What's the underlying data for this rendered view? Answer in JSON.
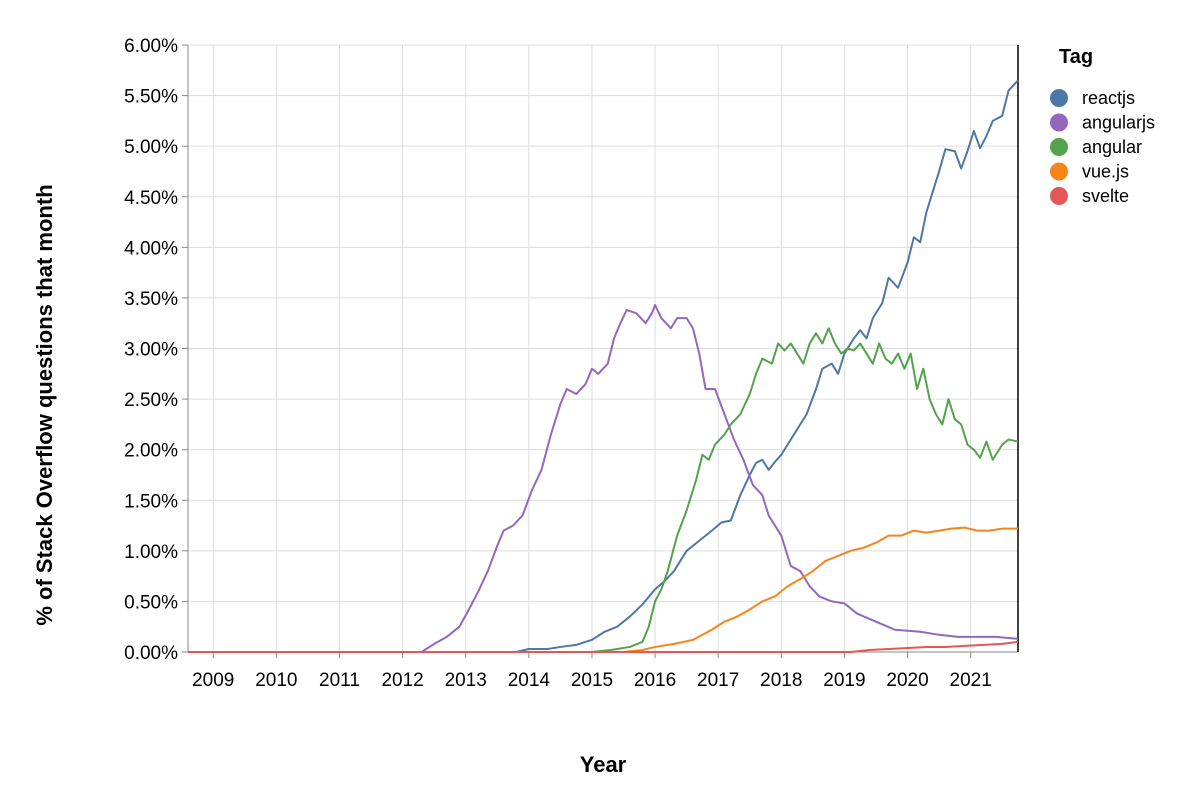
{
  "chart_data": {
    "type": "line",
    "xlabel": "Year",
    "ylabel": "% of Stack Overflow questions that month",
    "xlim": [
      2008.6,
      2021.75
    ],
    "ylim": [
      0,
      6
    ],
    "x_ticks": [
      "2009",
      "2010",
      "2011",
      "2012",
      "2013",
      "2014",
      "2015",
      "2016",
      "2017",
      "2018",
      "2019",
      "2020",
      "2021"
    ],
    "y_ticks": [
      "0.00%",
      "0.50%",
      "1.00%",
      "1.50%",
      "2.00%",
      "2.50%",
      "3.00%",
      "3.50%",
      "4.00%",
      "4.50%",
      "5.00%",
      "5.50%",
      "6.00%"
    ],
    "grid": true,
    "legend": {
      "title": "Tag",
      "position": "right"
    },
    "series": [
      {
        "name": "reactjs",
        "color": "#4c78a8",
        "points": [
          [
            2008.6,
            0.0
          ],
          [
            2013.8,
            0.0
          ],
          [
            2014.0,
            0.03
          ],
          [
            2014.3,
            0.03
          ],
          [
            2014.5,
            0.05
          ],
          [
            2014.75,
            0.07
          ],
          [
            2015.0,
            0.12
          ],
          [
            2015.2,
            0.2
          ],
          [
            2015.4,
            0.25
          ],
          [
            2015.6,
            0.35
          ],
          [
            2015.8,
            0.47
          ],
          [
            2016.0,
            0.62
          ],
          [
            2016.15,
            0.7
          ],
          [
            2016.3,
            0.8
          ],
          [
            2016.5,
            1.0
          ],
          [
            2016.7,
            1.1
          ],
          [
            2016.9,
            1.2
          ],
          [
            2017.05,
            1.28
          ],
          [
            2017.2,
            1.3
          ],
          [
            2017.35,
            1.55
          ],
          [
            2017.5,
            1.75
          ],
          [
            2017.6,
            1.87
          ],
          [
            2017.7,
            1.9
          ],
          [
            2017.8,
            1.8
          ],
          [
            2017.9,
            1.88
          ],
          [
            2018.0,
            1.95
          ],
          [
            2018.2,
            2.15
          ],
          [
            2018.4,
            2.35
          ],
          [
            2018.55,
            2.6
          ],
          [
            2018.65,
            2.8
          ],
          [
            2018.8,
            2.85
          ],
          [
            2018.9,
            2.75
          ],
          [
            2019.0,
            2.95
          ],
          [
            2019.15,
            3.1
          ],
          [
            2019.25,
            3.18
          ],
          [
            2019.35,
            3.1
          ],
          [
            2019.45,
            3.3
          ],
          [
            2019.6,
            3.45
          ],
          [
            2019.7,
            3.7
          ],
          [
            2019.85,
            3.6
          ],
          [
            2020.0,
            3.85
          ],
          [
            2020.1,
            4.1
          ],
          [
            2020.2,
            4.05
          ],
          [
            2020.3,
            4.35
          ],
          [
            2020.4,
            4.55
          ],
          [
            2020.5,
            4.75
          ],
          [
            2020.6,
            4.97
          ],
          [
            2020.75,
            4.95
          ],
          [
            2020.85,
            4.78
          ],
          [
            2020.95,
            4.95
          ],
          [
            2021.05,
            5.15
          ],
          [
            2021.15,
            4.98
          ],
          [
            2021.25,
            5.1
          ],
          [
            2021.35,
            5.25
          ],
          [
            2021.5,
            5.3
          ],
          [
            2021.6,
            5.55
          ],
          [
            2021.75,
            5.65
          ]
        ]
      },
      {
        "name": "angularjs",
        "color": "#9467bd",
        "points": [
          [
            2008.6,
            0.0
          ],
          [
            2012.3,
            0.0
          ],
          [
            2012.5,
            0.08
          ],
          [
            2012.7,
            0.15
          ],
          [
            2012.9,
            0.25
          ],
          [
            2013.05,
            0.42
          ],
          [
            2013.2,
            0.6
          ],
          [
            2013.35,
            0.8
          ],
          [
            2013.5,
            1.05
          ],
          [
            2013.6,
            1.2
          ],
          [
            2013.75,
            1.25
          ],
          [
            2013.9,
            1.35
          ],
          [
            2014.05,
            1.6
          ],
          [
            2014.2,
            1.8
          ],
          [
            2014.35,
            2.15
          ],
          [
            2014.5,
            2.45
          ],
          [
            2014.6,
            2.6
          ],
          [
            2014.75,
            2.55
          ],
          [
            2014.9,
            2.65
          ],
          [
            2015.0,
            2.8
          ],
          [
            2015.1,
            2.75
          ],
          [
            2015.25,
            2.85
          ],
          [
            2015.35,
            3.1
          ],
          [
            2015.45,
            3.25
          ],
          [
            2015.55,
            3.38
          ],
          [
            2015.7,
            3.35
          ],
          [
            2015.85,
            3.25
          ],
          [
            2015.95,
            3.35
          ],
          [
            2016.0,
            3.43
          ],
          [
            2016.1,
            3.3
          ],
          [
            2016.25,
            3.2
          ],
          [
            2016.35,
            3.3
          ],
          [
            2016.5,
            3.3
          ],
          [
            2016.6,
            3.2
          ],
          [
            2016.7,
            2.95
          ],
          [
            2016.8,
            2.6
          ],
          [
            2016.95,
            2.6
          ],
          [
            2017.1,
            2.35
          ],
          [
            2017.25,
            2.1
          ],
          [
            2017.4,
            1.9
          ],
          [
            2017.55,
            1.65
          ],
          [
            2017.7,
            1.55
          ],
          [
            2017.8,
            1.35
          ],
          [
            2018.0,
            1.15
          ],
          [
            2018.15,
            0.85
          ],
          [
            2018.3,
            0.8
          ],
          [
            2018.45,
            0.65
          ],
          [
            2018.6,
            0.55
          ],
          [
            2018.8,
            0.5
          ],
          [
            2019.0,
            0.48
          ],
          [
            2019.2,
            0.38
          ],
          [
            2019.5,
            0.3
          ],
          [
            2019.8,
            0.22
          ],
          [
            2020.2,
            0.2
          ],
          [
            2020.5,
            0.17
          ],
          [
            2020.8,
            0.15
          ],
          [
            2021.1,
            0.15
          ],
          [
            2021.4,
            0.15
          ],
          [
            2021.75,
            0.13
          ]
        ]
      },
      {
        "name": "angular",
        "color": "#54a24b",
        "points": [
          [
            2008.6,
            0.0
          ],
          [
            2015.0,
            0.0
          ],
          [
            2015.3,
            0.02
          ],
          [
            2015.6,
            0.05
          ],
          [
            2015.8,
            0.1
          ],
          [
            2015.9,
            0.25
          ],
          [
            2016.0,
            0.5
          ],
          [
            2016.1,
            0.62
          ],
          [
            2016.2,
            0.8
          ],
          [
            2016.35,
            1.15
          ],
          [
            2016.5,
            1.4
          ],
          [
            2016.65,
            1.7
          ],
          [
            2016.75,
            1.95
          ],
          [
            2016.85,
            1.9
          ],
          [
            2016.95,
            2.05
          ],
          [
            2017.1,
            2.15
          ],
          [
            2017.2,
            2.25
          ],
          [
            2017.35,
            2.35
          ],
          [
            2017.5,
            2.55
          ],
          [
            2017.6,
            2.75
          ],
          [
            2017.7,
            2.9
          ],
          [
            2017.85,
            2.85
          ],
          [
            2017.95,
            3.05
          ],
          [
            2018.05,
            2.98
          ],
          [
            2018.15,
            3.05
          ],
          [
            2018.25,
            2.95
          ],
          [
            2018.35,
            2.85
          ],
          [
            2018.45,
            3.05
          ],
          [
            2018.55,
            3.15
          ],
          [
            2018.65,
            3.05
          ],
          [
            2018.75,
            3.2
          ],
          [
            2018.85,
            3.05
          ],
          [
            2018.95,
            2.95
          ],
          [
            2019.05,
            3.0
          ],
          [
            2019.15,
            2.98
          ],
          [
            2019.25,
            3.05
          ],
          [
            2019.35,
            2.95
          ],
          [
            2019.45,
            2.85
          ],
          [
            2019.55,
            3.05
          ],
          [
            2019.65,
            2.9
          ],
          [
            2019.75,
            2.85
          ],
          [
            2019.85,
            2.95
          ],
          [
            2019.95,
            2.8
          ],
          [
            2020.05,
            2.95
          ],
          [
            2020.15,
            2.6
          ],
          [
            2020.25,
            2.8
          ],
          [
            2020.35,
            2.5
          ],
          [
            2020.45,
            2.35
          ],
          [
            2020.55,
            2.25
          ],
          [
            2020.65,
            2.5
          ],
          [
            2020.75,
            2.3
          ],
          [
            2020.85,
            2.25
          ],
          [
            2020.95,
            2.05
          ],
          [
            2021.05,
            2.0
          ],
          [
            2021.15,
            1.92
          ],
          [
            2021.25,
            2.08
          ],
          [
            2021.35,
            1.9
          ],
          [
            2021.5,
            2.05
          ],
          [
            2021.6,
            2.1
          ],
          [
            2021.75,
            2.08
          ]
        ]
      },
      {
        "name": "vue.js",
        "color": "#f58518",
        "points": [
          [
            2008.6,
            0.0
          ],
          [
            2015.5,
            0.0
          ],
          [
            2015.8,
            0.02
          ],
          [
            2016.0,
            0.05
          ],
          [
            2016.3,
            0.08
          ],
          [
            2016.6,
            0.12
          ],
          [
            2016.9,
            0.22
          ],
          [
            2017.1,
            0.3
          ],
          [
            2017.3,
            0.35
          ],
          [
            2017.5,
            0.42
          ],
          [
            2017.7,
            0.5
          ],
          [
            2017.9,
            0.55
          ],
          [
            2018.1,
            0.65
          ],
          [
            2018.3,
            0.72
          ],
          [
            2018.5,
            0.8
          ],
          [
            2018.7,
            0.9
          ],
          [
            2018.9,
            0.95
          ],
          [
            2019.1,
            1.0
          ],
          [
            2019.3,
            1.03
          ],
          [
            2019.5,
            1.08
          ],
          [
            2019.7,
            1.15
          ],
          [
            2019.9,
            1.15
          ],
          [
            2020.1,
            1.2
          ],
          [
            2020.3,
            1.18
          ],
          [
            2020.5,
            1.2
          ],
          [
            2020.7,
            1.22
          ],
          [
            2020.9,
            1.23
          ],
          [
            2021.1,
            1.2
          ],
          [
            2021.3,
            1.2
          ],
          [
            2021.5,
            1.22
          ],
          [
            2021.75,
            1.22
          ]
        ]
      },
      {
        "name": "svelte",
        "color": "#e45756",
        "points": [
          [
            2008.6,
            0.0
          ],
          [
            2019.1,
            0.0
          ],
          [
            2019.4,
            0.02
          ],
          [
            2019.7,
            0.03
          ],
          [
            2020.0,
            0.04
          ],
          [
            2020.3,
            0.05
          ],
          [
            2020.6,
            0.05
          ],
          [
            2020.9,
            0.06
          ],
          [
            2021.2,
            0.07
          ],
          [
            2021.5,
            0.08
          ],
          [
            2021.75,
            0.1
          ]
        ]
      }
    ]
  }
}
